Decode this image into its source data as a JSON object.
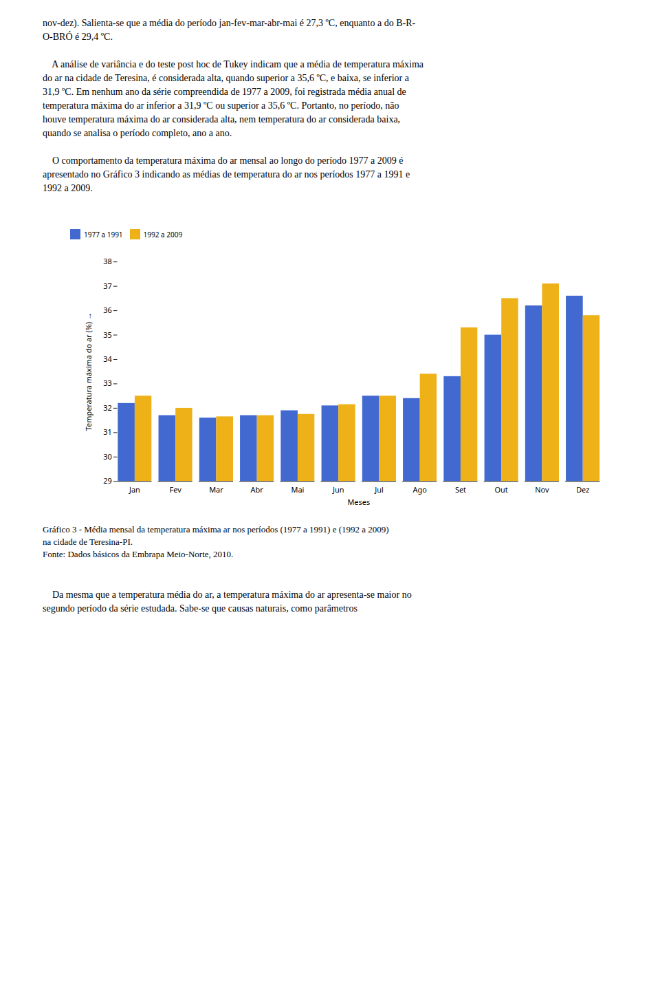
{
  "text_above": [
    [
      "nov-dez). Salienta-se que a média do período jan-fev-mar-abr-mai é 27,3 ºC, enquanto a do B-R-",
      "O-BRÓ é 29,4 ºC."
    ],
    [
      "    A análise de variância e do teste post hoc de Tukey indicam que a média de temperatura máxima",
      "do ar na cidade de Teresina, é considerada alta, quando superior a 35,6 ºC, e baixa, se inferior a",
      "31,9 ºC. Em nenhum ano da série compreendida de 1977 a 2009, foi registrada média anual de",
      "temperatura máxima do ar inferior a 31,9 ºC ou superior a 35,6 ºC. Portanto, no período, não",
      "houve temperatura máxima do ar considerada alta, nem temperatura do ar considerada baixa,",
      "quando se analisa o período completo, ano a ano."
    ],
    [
      "    O comportamento da temperatura máxima do ar mensal ao longo do período 1977 a 2009 é",
      "apresentado no Gráfico 3 indicando as médias de temperatura do ar nos períodos 1977 a 1991 e",
      "1992 a 2009."
    ]
  ],
  "chart_data": {
    "type": "bar",
    "categories": [
      "Jan",
      "Fev",
      "Mar",
      "Abr",
      "Mai",
      "Jun",
      "Jul",
      "Ago",
      "Set",
      "Out",
      "Nov",
      "Dez"
    ],
    "series": [
      {
        "name": "1977 a 1991",
        "values": [
          32.2,
          31.7,
          31.6,
          31.7,
          31.9,
          32.1,
          32.5,
          32.4,
          33.3,
          35.0,
          36.2,
          36.6
        ]
      },
      {
        "name": "1992 a 2009",
        "values": [
          32.5,
          32.0,
          31.65,
          31.7,
          31.75,
          32.15,
          32.5,
          33.4,
          35.3,
          36.5,
          37.1,
          35.8
        ]
      }
    ],
    "xlabel": "Meses",
    "ylabel": "Temperatura máxima do ar (%)",
    "ylim": [
      29,
      38
    ],
    "yticks": [
      29,
      30,
      31,
      32,
      33,
      34,
      35,
      36,
      37,
      38
    ],
    "legend": "upper left",
    "grid": false,
    "caption": [
      "Gráfico 3 - Média mensal da temperatura máxima ar nos períodos (1977 a 1991) e (1992 a 2009)",
      "na cidade de Teresina-PI.",
      "Fonte: Dados básicos da Embrapa Meio-Norte, 2010."
    ]
  },
  "text_below": [
    [
      "    Da mesma que a temperatura média do ar, a temperatura máxima do ar apresenta-se maior no",
      "segundo período da série estudada. Sabe-se que causas naturais, como parâmetros"
    ]
  ]
}
